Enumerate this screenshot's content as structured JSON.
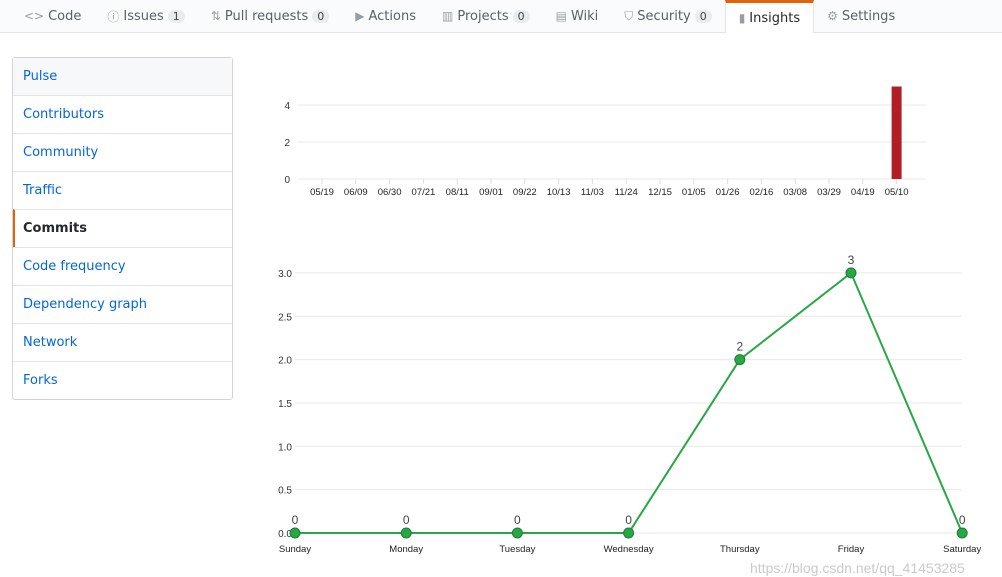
{
  "tabs": [
    {
      "label": "Code",
      "icon": "code-icon",
      "glyph": "<>"
    },
    {
      "label": "Issues",
      "icon": "issue-icon",
      "glyph": "ⓘ",
      "count": "1"
    },
    {
      "label": "Pull requests",
      "icon": "pull-request-icon",
      "glyph": "⇅",
      "count": "0"
    },
    {
      "label": "Actions",
      "icon": "play-icon",
      "glyph": "▶"
    },
    {
      "label": "Projects",
      "icon": "project-icon",
      "glyph": "▥",
      "count": "0"
    },
    {
      "label": "Wiki",
      "icon": "book-icon",
      "glyph": "▤"
    },
    {
      "label": "Security",
      "icon": "shield-icon",
      "glyph": "⛉",
      "count": "0"
    },
    {
      "label": "Insights",
      "icon": "graph-icon",
      "glyph": "▮",
      "selected": true
    },
    {
      "label": "Settings",
      "icon": "gear-icon",
      "glyph": "⚙"
    }
  ],
  "sidebar": {
    "items": [
      "Pulse",
      "Contributors",
      "Community",
      "Traffic",
      "Commits",
      "Code frequency",
      "Dependency graph",
      "Network",
      "Forks"
    ],
    "selected": "Commits"
  },
  "chart_data": [
    {
      "type": "bar",
      "title": "",
      "categories": [
        "05/19",
        "06/09",
        "06/30",
        "07/21",
        "08/11",
        "09/01",
        "09/22",
        "10/13",
        "11/03",
        "11/24",
        "12/15",
        "01/05",
        "01/26",
        "02/16",
        "03/08",
        "03/29",
        "04/19",
        "05/10"
      ],
      "values": [
        0,
        0,
        0,
        0,
        0,
        0,
        0,
        0,
        0,
        0,
        0,
        0,
        0,
        0,
        0,
        0,
        0,
        5
      ],
      "yticks": [
        0,
        2,
        4
      ],
      "ylim": [
        0,
        5
      ],
      "color": "#b31d28",
      "grid": true
    },
    {
      "type": "line",
      "categories": [
        "Sunday",
        "Monday",
        "Tuesday",
        "Wednesday",
        "Thursday",
        "Friday",
        "Saturday"
      ],
      "values": [
        0,
        0,
        0,
        0,
        2,
        3,
        0
      ],
      "data_labels": [
        "0",
        "0",
        "0",
        "0",
        "2",
        "3",
        "0"
      ],
      "yticks": [
        "0.0",
        "0.5",
        "1.0",
        "1.5",
        "2.0",
        "2.5",
        "3.0"
      ],
      "ylim": [
        0,
        3
      ],
      "color": "#28a745",
      "grid": true
    }
  ],
  "watermark": "https://blog.csdn.net/qq_41453285"
}
